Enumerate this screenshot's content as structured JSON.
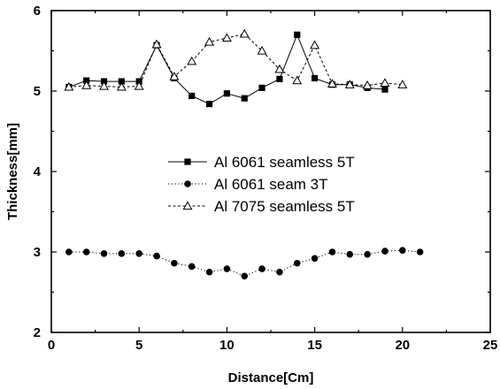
{
  "chart_data": {
    "type": "line",
    "title": "",
    "xlabel": "Distance[Cm]",
    "ylabel": "Thickness[mm]",
    "xlim": [
      0,
      25
    ],
    "ylim": [
      2,
      6
    ],
    "xticks": [
      0,
      5,
      10,
      15,
      20,
      25
    ],
    "yticks": [
      2,
      3,
      4,
      5,
      6
    ],
    "legend_position": "center",
    "grid": false,
    "series": [
      {
        "name": "Al 6061 seamless 5T",
        "marker": "filled-square",
        "line_style": "solid",
        "color": "#000000",
        "x": [
          1,
          2,
          3,
          4,
          5,
          6,
          7,
          8,
          9,
          10,
          11,
          12,
          13,
          14,
          15,
          16,
          17,
          18,
          19
        ],
        "y": [
          5.05,
          5.13,
          5.12,
          5.12,
          5.12,
          5.57,
          5.16,
          4.94,
          4.84,
          4.97,
          4.91,
          5.04,
          5.15,
          5.7,
          5.16,
          5.08,
          5.08,
          5.04,
          5.02
        ]
      },
      {
        "name": "Al 6061 seam 3T",
        "marker": "filled-circle",
        "line_style": "dotted",
        "color": "#000000",
        "x": [
          1,
          2,
          3,
          4,
          5,
          6,
          7,
          8,
          9,
          10,
          11,
          12,
          13,
          14,
          15,
          16,
          17,
          18,
          19,
          20,
          21
        ],
        "y": [
          3.0,
          3.0,
          2.98,
          2.98,
          2.98,
          2.95,
          2.86,
          2.82,
          2.75,
          2.79,
          2.7,
          2.79,
          2.75,
          2.86,
          2.92,
          3.0,
          2.97,
          2.97,
          3.01,
          3.02,
          3.0
        ]
      },
      {
        "name": "Al 7075 seamless 5T",
        "marker": "open-triangle",
        "line_style": "dashed",
        "color": "#000000",
        "x": [
          1,
          2,
          3,
          4,
          5,
          6,
          7,
          8,
          9,
          10,
          11,
          12,
          13,
          14,
          15,
          16,
          17,
          18,
          19,
          20
        ],
        "y": [
          5.05,
          5.07,
          5.06,
          5.05,
          5.06,
          5.58,
          5.18,
          5.37,
          5.61,
          5.66,
          5.71,
          5.5,
          5.27,
          5.13,
          5.57,
          5.09,
          5.08,
          5.07,
          5.1,
          5.08
        ]
      }
    ]
  }
}
